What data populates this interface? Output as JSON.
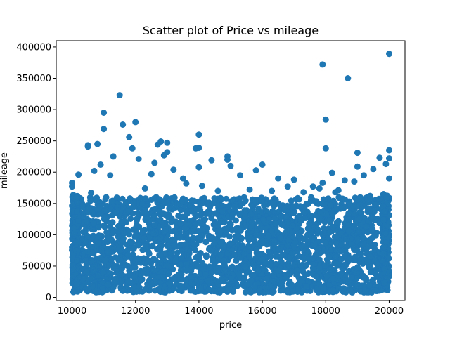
{
  "chart_data": {
    "type": "scatter",
    "title": "Scatter plot of Price vs mileage",
    "xlabel": "price",
    "ylabel": "mileage",
    "xlim": [
      9500,
      20500
    ],
    "ylim": [
      -5000,
      410000
    ],
    "xticks": [
      10000,
      12000,
      14000,
      16000,
      18000,
      20000
    ],
    "yticks": [
      0,
      50000,
      100000,
      150000,
      200000,
      250000,
      300000,
      350000,
      400000
    ],
    "grid": false,
    "color": "#1f77b4",
    "dense_band": {
      "x_range": [
        10000,
        20000
      ],
      "y_range": [
        8000,
        160000
      ]
    },
    "series": [
      {
        "x": [
          11500,
          11000,
          11000,
          11600,
          11800,
          12000,
          10500,
          10500,
          10800,
          12700,
          12800,
          13000,
          13000,
          12900,
          14000,
          14000,
          13900,
          14000,
          14900,
          14900,
          15000,
          17900,
          18700,
          18000,
          18000,
          19000,
          19000,
          19500,
          20000,
          20000,
          20000,
          20000,
          10000,
          10000,
          10200,
          10700,
          11300,
          11900,
          12100,
          12500,
          12600,
          13200,
          13500,
          14400,
          15300,
          15800,
          16000,
          16500,
          17000,
          17600,
          17900,
          18200,
          18400,
          18600,
          18900,
          19200,
          19700,
          19900,
          10600,
          10900,
          11200,
          12300,
          13600,
          14100,
          14600,
          15600,
          16300,
          16800,
          17300,
          17800,
          18300,
          19400
        ],
        "y": [
          323000,
          295000,
          269000,
          276000,
          256000,
          280000,
          243000,
          241000,
          245000,
          244000,
          249000,
          232000,
          247000,
          227000,
          260000,
          239000,
          238000,
          208000,
          225000,
          220000,
          210000,
          372000,
          350000,
          284000,
          238000,
          231000,
          209000,
          205000,
          389000,
          235000,
          222000,
          190000,
          183000,
          177000,
          196000,
          202000,
          225000,
          238000,
          221000,
          197000,
          215000,
          204000,
          190000,
          219000,
          195000,
          203000,
          212000,
          190000,
          188000,
          177000,
          183000,
          199000,
          171000,
          187000,
          185000,
          195000,
          223000,
          213000,
          167000,
          212000,
          195000,
          174000,
          182000,
          178000,
          170000,
          172000,
          170000,
          177000,
          168000,
          174000,
          168000,
          162000
        ]
      }
    ]
  }
}
